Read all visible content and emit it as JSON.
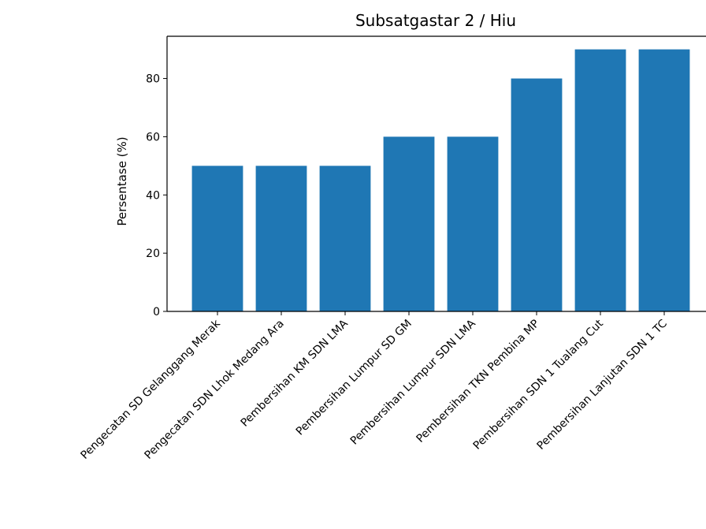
{
  "chart_data": {
    "type": "bar",
    "title": "Subsatgastar 2 / Hiu",
    "xlabel": "",
    "ylabel": "Persentase (%)",
    "categories": [
      "Pengecatan SD Gelanggang Merak",
      "Pengecatan SDN Lhok Medang Ara",
      "Pembersihan KM SDN LMA",
      "Pembersihan Lumpur SD GM",
      "Pembersihan Lumpur SDN LMA",
      "Pembersihan TKN Pembina MP",
      "Pembersihan SDN 1 Tualang Cut",
      "Pembersihan Lanjutan SDN 1 TC"
    ],
    "values": [
      50,
      50,
      50,
      60,
      60,
      80,
      90,
      90
    ],
    "ylim": [
      0,
      94.5
    ],
    "yticks": [
      0,
      20,
      40,
      60,
      80
    ],
    "bar_color": "#1f77b4",
    "grid": false
  }
}
